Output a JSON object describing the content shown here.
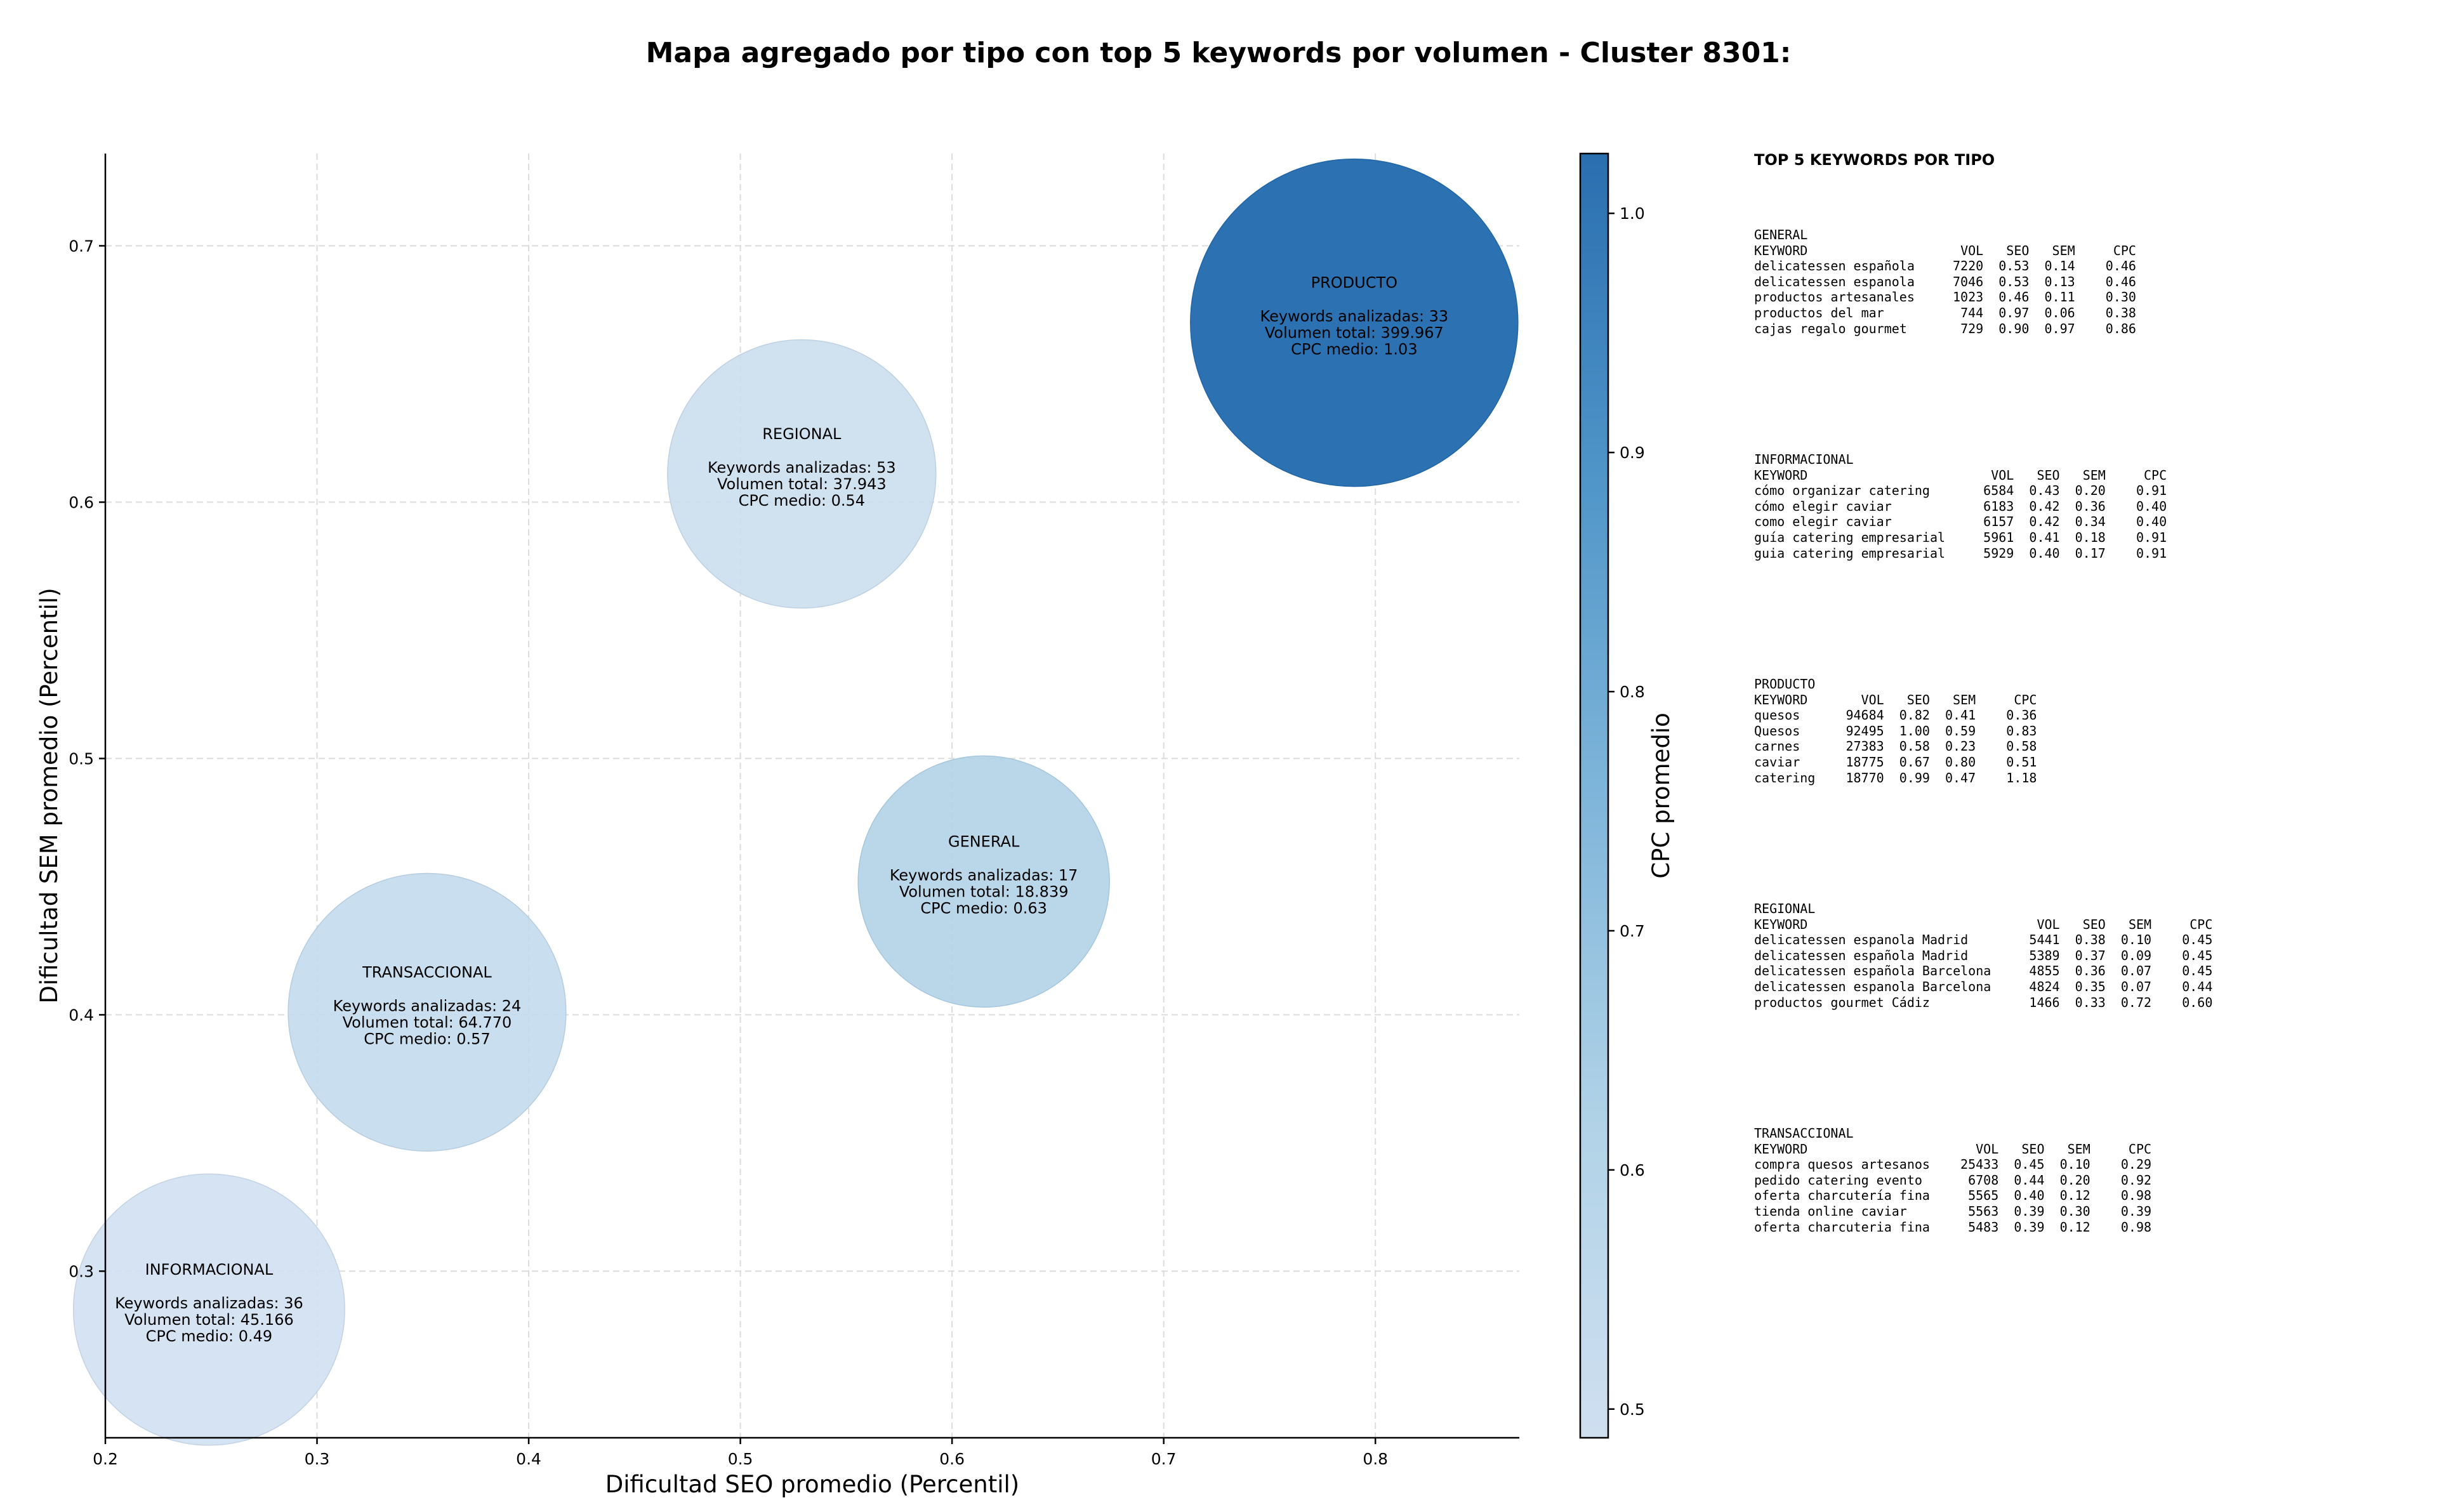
{
  "chart_data": {
    "type": "scatter",
    "title": "Mapa agregado por tipo con top 5 keywords por volumen - Cluster 8301:",
    "xlabel": "Dificultad SEO promedio (Percentil)",
    "ylabel": "Dificultad SEM promedio (Percentil)",
    "xlim": [
      0.2,
      0.868
    ],
    "ylim": [
      0.235,
      0.736
    ],
    "xticks": [
      "0.2",
      "0.3",
      "0.4",
      "0.5",
      "0.6",
      "0.7",
      "0.8"
    ],
    "yticks": [
      "0.3",
      "0.4",
      "0.5",
      "0.6",
      "0.7"
    ],
    "grid": true,
    "colorbar": {
      "label": "CPC promedio",
      "min": 0.488,
      "max": 1.025,
      "ticks": [
        "0.5",
        "0.6",
        "0.7",
        "0.8",
        "0.9",
        "1.0"
      ]
    },
    "points": [
      {
        "name": "GENERAL",
        "x": 0.615,
        "y": 0.452,
        "keywords_label": "Keywords analizadas: 17",
        "volume_label": "Volumen total: 18.839",
        "cpc_label": "CPC medio: 0.63",
        "keywords": 17,
        "volume": 18839,
        "cpc": 0.63
      },
      {
        "name": "INFORMACIONAL",
        "x": 0.249,
        "y": 0.285,
        "keywords_label": "Keywords analizadas: 36",
        "volume_label": "Volumen total: 45.166",
        "cpc_label": "CPC medio: 0.49",
        "keywords": 36,
        "volume": 45166,
        "cpc": 0.49
      },
      {
        "name": "PRODUCTO",
        "x": 0.79,
        "y": 0.67,
        "keywords_label": "Keywords analizadas: 33",
        "volume_label": "Volumen total: 399.967",
        "cpc_label": "CPC medio: 1.03",
        "keywords": 33,
        "volume": 399967,
        "cpc": 1.03
      },
      {
        "name": "REGIONAL",
        "x": 0.529,
        "y": 0.611,
        "keywords_label": "Keywords analizadas: 53",
        "volume_label": "Volumen total: 37.943",
        "cpc_label": "CPC medio: 0.54",
        "keywords": 53,
        "volume": 37943,
        "cpc": 0.54
      },
      {
        "name": "TRANSACCIONAL",
        "x": 0.352,
        "y": 0.401,
        "keywords_label": "Keywords analizadas: 24",
        "volume_label": "Volumen total: 64.770",
        "cpc_label": "CPC medio: 0.57",
        "keywords": 24,
        "volume": 64770,
        "cpc": 0.57
      }
    ]
  },
  "keywords_panel": {
    "heading": "TOP 5 KEYWORDS POR TIPO",
    "columns": [
      "KEYWORD",
      "VOL",
      "SEO",
      "SEM",
      "CPC"
    ],
    "groups": [
      {
        "name": "GENERAL",
        "rows": [
          [
            "delicatessen española",
            "7220",
            "0.53",
            "0.14",
            "0.46"
          ],
          [
            "delicatessen espanola",
            "7046",
            "0.53",
            "0.13",
            "0.46"
          ],
          [
            "productos artesanales",
            "1023",
            "0.46",
            "0.11",
            "0.30"
          ],
          [
            "productos del mar",
            "744",
            "0.97",
            "0.06",
            "0.38"
          ],
          [
            "cajas regalo gourmet",
            "729",
            "0.90",
            "0.97",
            "0.86"
          ]
        ]
      },
      {
        "name": "INFORMACIONAL",
        "rows": [
          [
            "cómo organizar catering",
            "6584",
            "0.43",
            "0.20",
            "0.91"
          ],
          [
            "cómo elegir caviar",
            "6183",
            "0.42",
            "0.36",
            "0.40"
          ],
          [
            "como elegir caviar",
            "6157",
            "0.42",
            "0.34",
            "0.40"
          ],
          [
            "guía catering empresarial",
            "5961",
            "0.41",
            "0.18",
            "0.91"
          ],
          [
            "guia catering empresarial",
            "5929",
            "0.40",
            "0.17",
            "0.91"
          ]
        ]
      },
      {
        "name": "PRODUCTO",
        "rows": [
          [
            "quesos",
            "94684",
            "0.82",
            "0.41",
            "0.36"
          ],
          [
            "Quesos",
            "92495",
            "1.00",
            "0.59",
            "0.83"
          ],
          [
            "carnes",
            "27383",
            "0.58",
            "0.23",
            "0.58"
          ],
          [
            "caviar",
            "18775",
            "0.67",
            "0.80",
            "0.51"
          ],
          [
            "catering",
            "18770",
            "0.99",
            "0.47",
            "1.18"
          ]
        ]
      },
      {
        "name": "REGIONAL",
        "rows": [
          [
            "delicatessen espanola Madrid",
            "5441",
            "0.38",
            "0.10",
            "0.45"
          ],
          [
            "delicatessen española Madrid",
            "5389",
            "0.37",
            "0.09",
            "0.45"
          ],
          [
            "delicatessen española Barcelona",
            "4855",
            "0.36",
            "0.07",
            "0.45"
          ],
          [
            "delicatessen espanola Barcelona",
            "4824",
            "0.35",
            "0.07",
            "0.44"
          ],
          [
            "productos gourmet Cádiz",
            "1466",
            "0.33",
            "0.72",
            "0.60"
          ]
        ]
      },
      {
        "name": "TRANSACCIONAL",
        "rows": [
          [
            "compra quesos artesanos",
            "25433",
            "0.45",
            "0.10",
            "0.29"
          ],
          [
            "pedido catering evento",
            "6708",
            "0.44",
            "0.20",
            "0.92"
          ],
          [
            "oferta charcutería fina",
            "5565",
            "0.40",
            "0.12",
            "0.98"
          ],
          [
            "tienda online caviar",
            "5563",
            "0.39",
            "0.30",
            "0.39"
          ],
          [
            "oferta charcuteria fina",
            "5483",
            "0.39",
            "0.12",
            "0.98"
          ]
        ]
      }
    ]
  }
}
